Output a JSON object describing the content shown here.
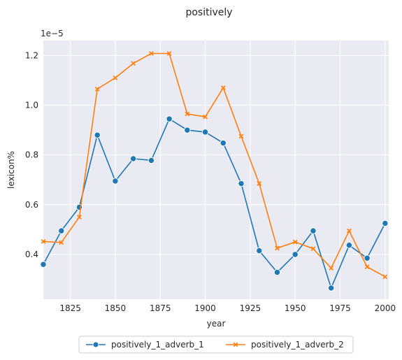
{
  "chart_data": {
    "type": "line",
    "title": "positively",
    "xlabel": "year",
    "ylabel": "lexicon%",
    "y_offset_text": "1e−5",
    "xlim": [
      1810,
      2002
    ],
    "ylim": [
      0.22,
      1.26
    ],
    "x_ticks": [
      1825,
      1850,
      1875,
      1900,
      1925,
      1950,
      1975,
      2000
    ],
    "y_ticks": [
      0.4,
      0.6,
      0.8,
      1.0,
      1.2
    ],
    "y_tick_labels": [
      "0.4",
      "0.6",
      "0.8",
      "1.0",
      "1.2"
    ],
    "grid": true,
    "legend_position": "bottom-center",
    "x": [
      1810,
      1820,
      1830,
      1840,
      1850,
      1860,
      1870,
      1880,
      1890,
      1900,
      1910,
      1920,
      1930,
      1940,
      1950,
      1960,
      1970,
      1980,
      1990,
      2000
    ],
    "series": [
      {
        "name": "positively_1_adverb_1",
        "color": "#1f77b4",
        "marker": "circle",
        "values": [
          0.36,
          0.495,
          0.59,
          0.88,
          0.695,
          0.785,
          0.778,
          0.945,
          0.9,
          0.892,
          0.848,
          0.685,
          0.415,
          0.328,
          0.4,
          0.495,
          0.265,
          0.437,
          0.385,
          0.525
        ]
      },
      {
        "name": "positively_1_adverb_2",
        "color": "#ff7f0e",
        "marker": "x",
        "values": [
          0.452,
          0.448,
          0.55,
          1.065,
          1.11,
          1.168,
          1.208,
          1.208,
          0.965,
          0.953,
          1.07,
          0.875,
          0.685,
          0.425,
          0.45,
          0.423,
          0.345,
          0.495,
          0.35,
          0.31
        ]
      }
    ]
  }
}
